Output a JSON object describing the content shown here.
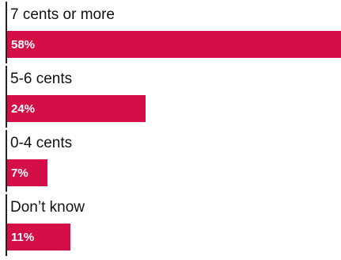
{
  "chart_data": {
    "type": "bar",
    "orientation": "horizontal",
    "categories": [
      "7 cents or more",
      "5-6 cents",
      "0-4 cents",
      "Don’t know"
    ],
    "values": [
      58,
      24,
      7,
      11
    ],
    "value_labels": [
      "58%",
      "24%",
      "7%",
      "11%"
    ],
    "unit": "%",
    "xlim": [
      0,
      58
    ],
    "bar_color": "#d40e46",
    "grid": false,
    "legend": "none"
  }
}
